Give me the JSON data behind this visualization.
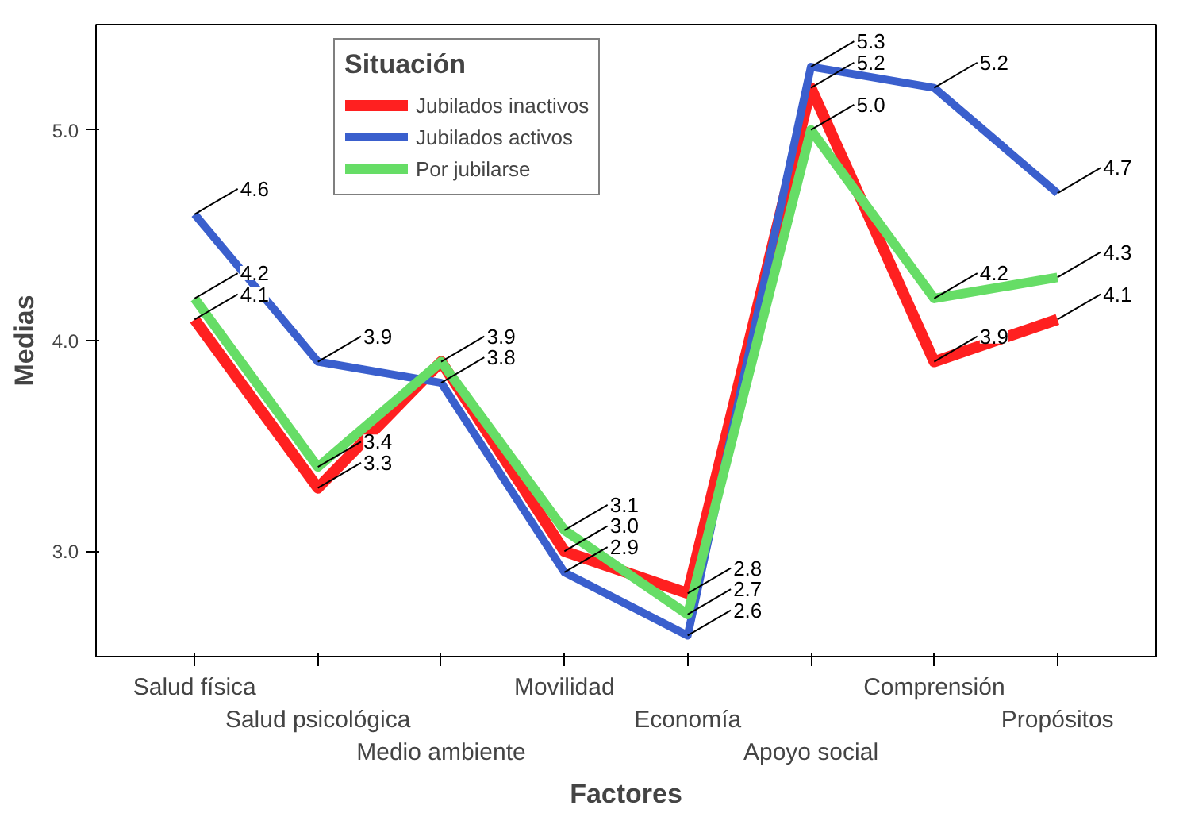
{
  "chart_data": {
    "type": "line",
    "xlabel": "Factores",
    "ylabel": "Medias",
    "legend_title": "Situación",
    "legend": "top",
    "grid": false,
    "marker": "none",
    "line_style": "solid",
    "categories": [
      "Salud física",
      "Salud psicológica",
      "Medio ambiente",
      "Movilidad",
      "Economía",
      "Apoyo social",
      "Comprensión",
      "Propósitos"
    ],
    "ylim": [
      2.5,
      5.5
    ],
    "yticks": [
      {
        "value": 3,
        "label": "3.0"
      },
      {
        "value": 4,
        "label": "4.0"
      },
      {
        "value": 5,
        "label": "5.0"
      }
    ],
    "series": [
      {
        "name": "Jubilados inactivos",
        "color": "#ff2020",
        "values": [
          4.1,
          3.3,
          3.9,
          3.0,
          2.8,
          5.2,
          3.9,
          4.1
        ],
        "value_labels": [
          "4.1",
          "3.3",
          "3.9",
          "3.0",
          "2.8",
          "5.2",
          "3.9",
          "4.1"
        ]
      },
      {
        "name": "Jubilados activos",
        "color": "#3a5fcd",
        "values": [
          4.6,
          3.9,
          3.8,
          2.9,
          2.6,
          5.3,
          5.2,
          4.7
        ],
        "value_labels": [
          "4.6",
          "3.9",
          "3.8",
          "2.9",
          "2.6",
          "5.3",
          "5.2",
          "4.7"
        ]
      },
      {
        "name": "Por jubilarse",
        "color": "#66dd66",
        "values": [
          4.2,
          3.4,
          3.9,
          3.1,
          2.7,
          5.0,
          4.2,
          4.3
        ],
        "value_labels": [
          "4.2",
          "3.4",
          null,
          "3.1",
          "2.7",
          "5.0",
          "4.2",
          "4.3"
        ]
      }
    ]
  }
}
